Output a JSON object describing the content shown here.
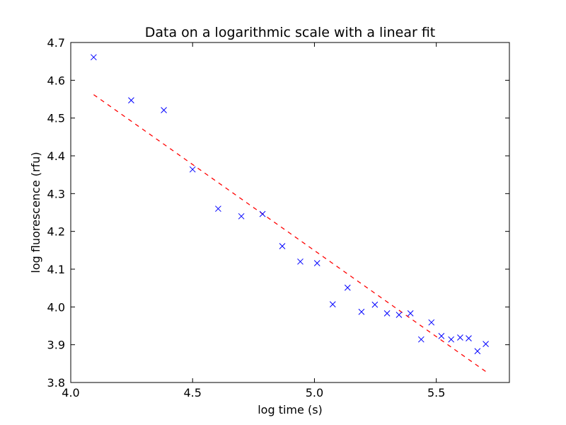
{
  "chart_data": {
    "type": "scatter",
    "title": "Data on a logarithmic scale with a linear fit",
    "xlabel": "log time (s)",
    "ylabel": "log fluorescence (rfu)",
    "xlim": [
      4.0,
      5.8
    ],
    "ylim": [
      3.8,
      4.7
    ],
    "xticks": [
      4.0,
      4.5,
      5.0,
      5.5
    ],
    "xtick_labels": [
      "4.0",
      "4.5",
      "5.0",
      "5.5"
    ],
    "yticks": [
      3.8,
      3.9,
      4.0,
      4.1,
      4.2,
      4.3,
      4.4,
      4.5,
      4.6,
      4.7
    ],
    "ytick_labels": [
      "3.8",
      "3.9",
      "4.0",
      "4.1",
      "4.2",
      "4.3",
      "4.4",
      "4.5",
      "4.6",
      "4.7"
    ],
    "grid": false,
    "series": [
      {
        "type": "scatter",
        "marker": "x",
        "color": "#0000ff",
        "points": [
          [
            4.094,
            4.661
          ],
          [
            4.248,
            4.547
          ],
          [
            4.382,
            4.521
          ],
          [
            4.5,
            4.364
          ],
          [
            4.605,
            4.26
          ],
          [
            4.7,
            4.24
          ],
          [
            4.787,
            4.246
          ],
          [
            4.868,
            4.161
          ],
          [
            4.942,
            4.12
          ],
          [
            5.011,
            4.116
          ],
          [
            5.075,
            4.007
          ],
          [
            5.136,
            4.051
          ],
          [
            5.193,
            3.987
          ],
          [
            5.248,
            4.006
          ],
          [
            5.298,
            3.983
          ],
          [
            5.347,
            3.979
          ],
          [
            5.394,
            3.983
          ],
          [
            5.438,
            3.914
          ],
          [
            5.48,
            3.959
          ],
          [
            5.521,
            3.923
          ],
          [
            5.561,
            3.914
          ],
          [
            5.598,
            3.919
          ],
          [
            5.633,
            3.917
          ],
          [
            5.669,
            3.883
          ],
          [
            5.703,
            3.902
          ]
        ]
      },
      {
        "type": "line",
        "style": "dashed",
        "color": "#ff0000",
        "x": [
          4.094,
          5.703
        ],
        "y": [
          4.562,
          3.829
        ]
      }
    ]
  }
}
